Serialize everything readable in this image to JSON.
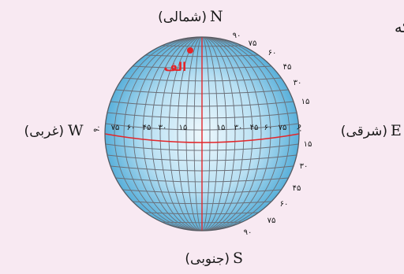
{
  "text_fragment": "ر دارد که",
  "directions": {
    "north": {
      "letter": "N",
      "word": "(شمالی)"
    },
    "south": {
      "letter": "S",
      "word": "(جنوبی)"
    },
    "east": {
      "letter": "E",
      "word": "(شرقی)"
    },
    "west": {
      "letter": "W",
      "word": "(غربی)"
    }
  },
  "point_label": "الف",
  "equator_west_ticks": [
    "۹۰",
    "۷۵",
    "۶۰",
    "۴۵",
    "۳۰",
    "۱۵"
  ],
  "equator_east_ticks": [
    "۱۵",
    "۳۰",
    "۴۵",
    "۶۰",
    "۷۵",
    "۹۰"
  ],
  "rim_north_ticks": [
    "۹۰",
    "۷۵",
    "۶۰",
    "۴۵",
    "۳۰",
    "۱۵"
  ],
  "rim_south_ticks": [
    "۱۵",
    "۳۰",
    "۴۵",
    "۶۰",
    "۷۵",
    "۹۰"
  ],
  "colors": {
    "background": "#f8e9f2",
    "globe_light": "#eef8fd",
    "globe_dark": "#5ab0da",
    "grid": "#6a6f78",
    "equator": "#e3262a",
    "point": "#e3262a"
  }
}
